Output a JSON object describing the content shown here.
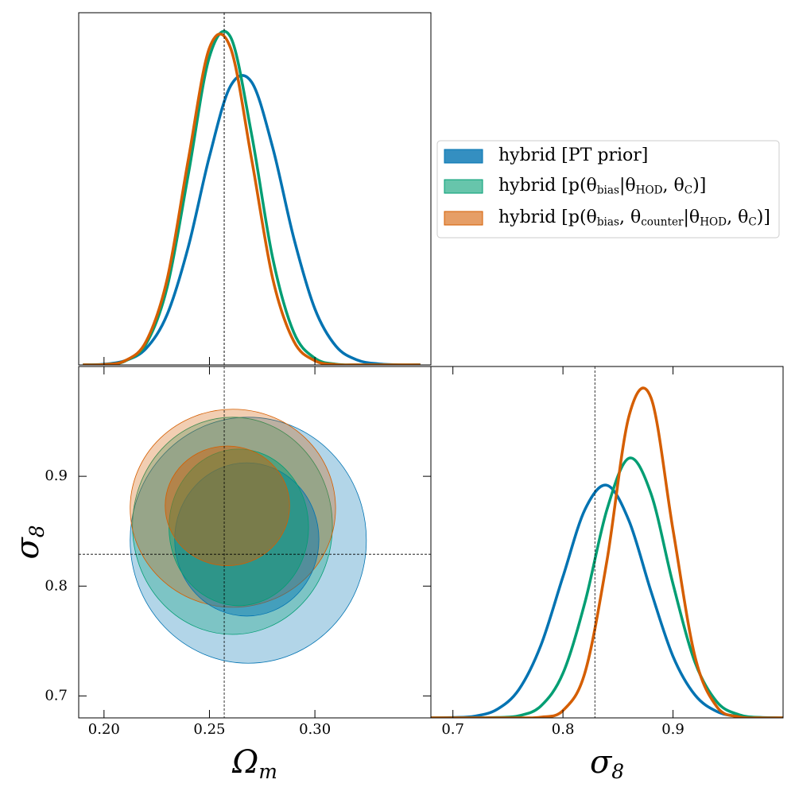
{
  "chart_data": [
    {
      "type": "line",
      "x": [
        0.19,
        0.2,
        0.21,
        0.22,
        0.23,
        0.24,
        0.25,
        0.26,
        0.27,
        0.28,
        0.29,
        0.3,
        0.31,
        0.32,
        0.33,
        0.34,
        0.35
      ],
      "series": [
        {
          "color": "#0173b2",
          "values": [
            0.0,
            0.002,
            0.012,
            0.047,
            0.144,
            0.336,
            0.592,
            0.792,
            0.803,
            0.617,
            0.36,
            0.159,
            0.053,
            0.014,
            0.003,
            0.0,
            0.0
          ]
        },
        {
          "color": "#029e73",
          "values": [
            0.0,
            0.001,
            0.011,
            0.06,
            0.222,
            0.542,
            0.875,
            0.931,
            0.654,
            0.303,
            0.092,
            0.019,
            0.002,
            0.0,
            0.0,
            0.0,
            0.0
          ]
        },
        {
          "color": "#d55e00",
          "values": [
            0.0,
            0.001,
            0.012,
            0.067,
            0.245,
            0.584,
            0.9,
            0.9,
            0.584,
            0.245,
            0.067,
            0.012,
            0.001,
            0.0,
            0.0,
            0.0,
            0.0
          ]
        }
      ],
      "xlim": [
        0.188,
        0.355
      ],
      "ylim": [
        0,
        1
      ],
      "reference_x": 0.257
    },
    {
      "type": "contour",
      "xlabel": "Ω_{m}",
      "ylabel": "σ_{8}",
      "xlim": [
        0.188,
        0.355
      ],
      "ylim": [
        0.68,
        1.0
      ],
      "xticks": [
        {
          "value": 0.2,
          "label": "0.20"
        },
        {
          "value": 0.25,
          "label": "0.25"
        },
        {
          "value": 0.3,
          "label": "0.30"
        }
      ],
      "yticks": [
        0.7,
        0.8,
        0.9
      ],
      "reference_x": 0.257,
      "reference_y": 0.829,
      "legend": "right",
      "series": [
        {
          "name": "hybrid [PT prior]",
          "color": "#0173b2",
          "contours": [
            {
              "cx": 0.2684,
              "cy": 0.8418,
              "rx": 0.056,
              "ry": 0.112
            },
            {
              "cx": 0.2677,
              "cy": 0.8425,
              "rx": 0.0342,
              "ry": 0.0698
            }
          ]
        },
        {
          "name": "hybrid [p(θ_{bias}|θ_{HOD}, θ_{C})]",
          "color": "#029e73",
          "contours": [
            {
              "cx": 0.2609,
              "cy": 0.8549,
              "rx": 0.0474,
              "ry": 0.0989
            },
            {
              "cx": 0.2639,
              "cy": 0.8535,
              "rx": 0.0331,
              "ry": 0.0713
            }
          ]
        },
        {
          "name": "hybrid [p(θ_{bias}, θ_{counter}|θ_{HOD}, θ_{C})]",
          "color": "#d55e00",
          "contours": [
            {
              "cx": 0.2611,
              "cy": 0.8709,
              "rx": 0.0487,
              "ry": 0.0902
            },
            {
              "cx": 0.2585,
              "cy": 0.8731,
              "rx": 0.0295,
              "ry": 0.0545
            }
          ]
        }
      ]
    },
    {
      "type": "line",
      "xlabel": "σ_{8}",
      "x": [
        0.68,
        0.7,
        0.72,
        0.74,
        0.76,
        0.78,
        0.8,
        0.82,
        0.84,
        0.86,
        0.88,
        0.9,
        0.92,
        0.94,
        0.96,
        0.98,
        1.0
      ],
      "series": [
        {
          "color": "#0173b2",
          "values": [
            0.0,
            0.001,
            0.005,
            0.024,
            0.081,
            0.207,
            0.402,
            0.593,
            0.662,
            0.561,
            0.36,
            0.175,
            0.065,
            0.018,
            0.004,
            0.001,
            0.0
          ]
        },
        {
          "color": "#029e73",
          "values": [
            0.0,
            0.0,
            0.0,
            0.001,
            0.006,
            0.034,
            0.127,
            0.329,
            0.593,
            0.739,
            0.638,
            0.381,
            0.158,
            0.045,
            0.009,
            0.001,
            0.0
          ]
        },
        {
          "color": "#d55e00",
          "values": [
            0.0,
            0.0,
            0.0,
            0.0,
            0.0,
            0.002,
            0.021,
            0.129,
            0.448,
            0.859,
            0.911,
            0.535,
            0.174,
            0.031,
            0.003,
            0.0,
            0.0
          ]
        }
      ],
      "xlim": [
        0.68,
        1.0
      ],
      "xticks": [
        0.7,
        0.8,
        0.9
      ],
      "ylim": [
        0,
        1
      ],
      "reference_x": 0.829
    }
  ]
}
